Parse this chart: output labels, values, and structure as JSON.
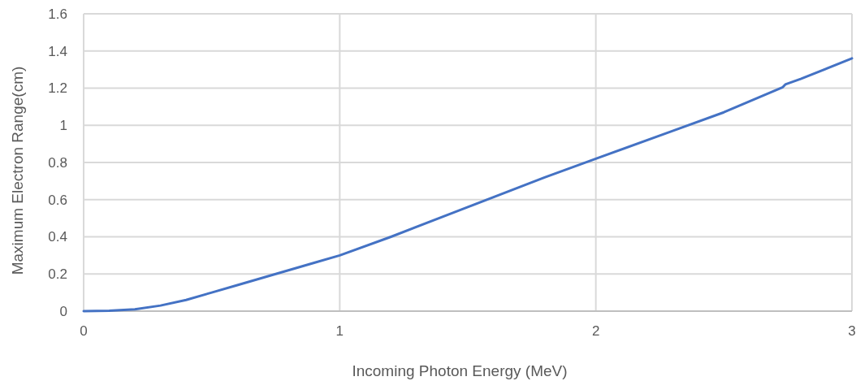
{
  "chart_data": {
    "type": "line",
    "xlabel": "Incoming Photon Energy (MeV)",
    "ylabel": "Maximum Electron Range(cm)",
    "x": [
      0,
      0.1,
      0.2,
      0.3,
      0.4,
      0.5,
      0.6,
      0.75,
      0.9,
      1.0,
      1.2,
      1.5,
      1.8,
      2.0,
      2.3,
      2.5,
      2.73,
      2.74,
      2.8,
      3.0
    ],
    "series": [
      {
        "color": "#4472c4",
        "values": [
          0,
          0.002,
          0.01,
          0.03,
          0.06,
          0.1,
          0.14,
          0.2,
          0.26,
          0.3,
          0.4,
          0.56,
          0.72,
          0.82,
          0.97,
          1.07,
          1.205,
          1.22,
          1.25,
          1.36
        ]
      }
    ],
    "xlim": [
      0,
      3
    ],
    "xticks": [
      0,
      1,
      2,
      3
    ],
    "ylim": [
      0,
      1.6
    ],
    "yticks": [
      0,
      0.2,
      0.4,
      0.6,
      0.8,
      1,
      1.2,
      1.4,
      1.6
    ],
    "grid": true,
    "marker": "none",
    "line_style": "solid"
  }
}
